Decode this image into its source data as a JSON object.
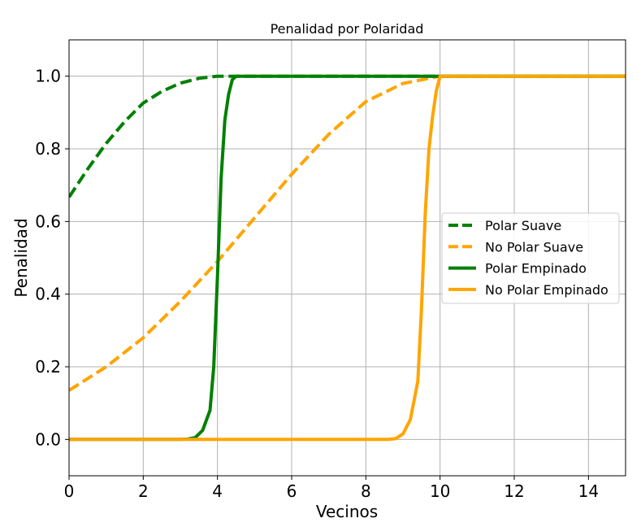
{
  "chart_data": {
    "type": "line",
    "title": "Penalidad por Polaridad",
    "xlabel": "Vecinos",
    "ylabel": "Penalidad",
    "xlim": [
      0,
      15
    ],
    "ylim": [
      -0.1,
      1.1
    ],
    "x_ticks": [
      0,
      2,
      4,
      6,
      8,
      10,
      12,
      14
    ],
    "y_ticks": [
      0.0,
      0.2,
      0.4,
      0.6,
      0.8,
      1.0
    ],
    "x_tick_labels": [
      "0",
      "2",
      "4",
      "6",
      "8",
      "10",
      "12",
      "14"
    ],
    "y_tick_labels": [
      "0.0",
      "0.2",
      "0.4",
      "0.6",
      "0.8",
      "1.0"
    ],
    "grid": true,
    "legend_position": "center-right",
    "series": [
      {
        "name": "Polar Suave",
        "color": "#008000",
        "style": "dashed",
        "x": [
          0,
          0.5,
          1,
          1.5,
          2,
          2.5,
          3,
          3.5,
          4,
          4.5,
          5,
          6,
          7,
          8,
          9,
          10,
          11,
          12,
          13,
          14,
          15
        ],
        "y": [
          0.667,
          0.744,
          0.815,
          0.875,
          0.926,
          0.958,
          0.981,
          0.994,
          1.0,
          1.0,
          1.0,
          1.0,
          1.0,
          1.0,
          1.0,
          1.0,
          1.0,
          1.0,
          1.0,
          1.0,
          1.0
        ]
      },
      {
        "name": "No Polar Suave",
        "color": "#FFA500",
        "style": "dashed",
        "x": [
          0,
          1,
          2,
          3,
          4,
          5,
          6,
          7,
          8,
          9,
          10,
          11,
          12,
          13,
          14,
          15
        ],
        "y": [
          0.135,
          0.2,
          0.28,
          0.38,
          0.49,
          0.61,
          0.73,
          0.84,
          0.93,
          0.98,
          1.0,
          1.0,
          1.0,
          1.0,
          1.0,
          1.0
        ]
      },
      {
        "name": "Polar Empinado",
        "color": "#008000",
        "style": "solid",
        "x": [
          0,
          3.0,
          3.2,
          3.4,
          3.6,
          3.8,
          3.9,
          4.0,
          4.1,
          4.2,
          4.3,
          4.4,
          4.5,
          4.6,
          5,
          6,
          8,
          10,
          12,
          14,
          15
        ],
        "y": [
          0.0,
          0.0,
          0.001,
          0.005,
          0.025,
          0.08,
          0.2,
          0.45,
          0.72,
          0.88,
          0.95,
          0.99,
          1.0,
          1.0,
          1.0,
          1.0,
          1.0,
          1.0,
          1.0,
          1.0,
          1.0
        ]
      },
      {
        "name": "No Polar Empinado",
        "color": "#FFA500",
        "style": "solid",
        "x": [
          0,
          8.6,
          8.8,
          9.0,
          9.2,
          9.4,
          9.5,
          9.6,
          9.7,
          9.8,
          9.9,
          10.0,
          10.2,
          11,
          12,
          13,
          14,
          15
        ],
        "y": [
          0.0,
          0.0,
          0.002,
          0.015,
          0.055,
          0.16,
          0.36,
          0.62,
          0.8,
          0.89,
          0.96,
          1.0,
          1.0,
          1.0,
          1.0,
          1.0,
          1.0,
          1.0
        ]
      }
    ]
  }
}
